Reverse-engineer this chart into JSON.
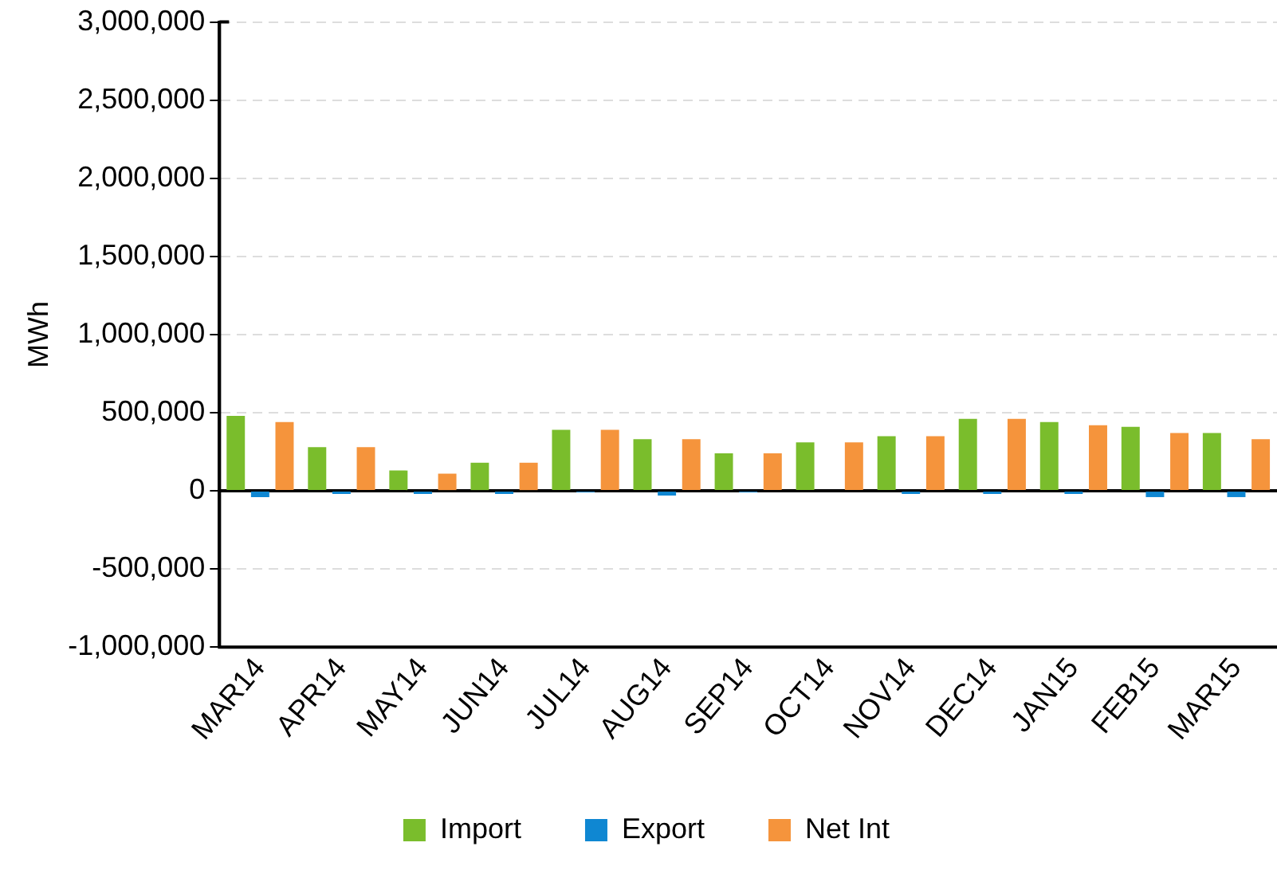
{
  "chart_data": {
    "type": "bar",
    "ylabel": "MWh",
    "categories": [
      "MAR14",
      "APR14",
      "MAY14",
      "JUN14",
      "JUL14",
      "AUG14",
      "SEP14",
      "OCT14",
      "NOV14",
      "DEC14",
      "JAN15",
      "FEB15",
      "MAR15"
    ],
    "series": [
      {
        "name": "Import",
        "color": "#7abd2c",
        "values": [
          480000,
          280000,
          130000,
          180000,
          390000,
          330000,
          240000,
          310000,
          350000,
          460000,
          440000,
          410000,
          370000
        ]
      },
      {
        "name": "Export",
        "color": "#0f87d2",
        "values": [
          -40000,
          -20000,
          -20000,
          -20000,
          -10000,
          -30000,
          -10000,
          null,
          -20000,
          -20000,
          -20000,
          -40000,
          -40000
        ]
      },
      {
        "name": "Net Int",
        "color": "#f5943c",
        "values": [
          440000,
          280000,
          110000,
          180000,
          390000,
          330000,
          240000,
          310000,
          350000,
          460000,
          420000,
          370000,
          330000
        ]
      }
    ],
    "ylim": [
      -1000000,
      3000000
    ],
    "yticks": [
      {
        "value": -1000000,
        "label": "-1,000,000"
      },
      {
        "value": -500000,
        "label": "-500,000"
      },
      0,
      {
        "value": 500000,
        "label": "500,000"
      },
      {
        "value": 1000000,
        "label": "1,000,000"
      },
      {
        "value": 1500000,
        "label": "1,500,000"
      },
      {
        "value": 2000000,
        "label": "2,000,000"
      },
      {
        "value": 2500000,
        "label": "2,500,000"
      },
      {
        "value": 3000000,
        "label": "3,000,000"
      }
    ],
    "grid": "y",
    "legend": "bottom"
  }
}
